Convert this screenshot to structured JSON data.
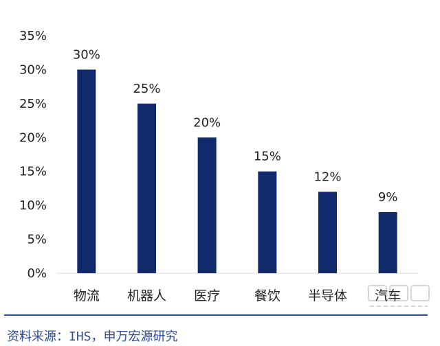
{
  "chart_data": {
    "type": "bar",
    "categories": [
      "物流",
      "机器人",
      "医疗",
      "餐饮",
      "半导体",
      "汽车"
    ],
    "values": [
      30,
      25,
      20,
      15,
      12,
      9
    ],
    "data_labels": [
      "30%",
      "25%",
      "20%",
      "15%",
      "12%",
      "9%"
    ],
    "y_ticks": [
      "0%",
      "5%",
      "10%",
      "15%",
      "20%",
      "25%",
      "30%",
      "35%"
    ],
    "ylim": [
      0,
      35
    ],
    "grid": false,
    "bar_color": "#102a6b"
  },
  "source": "资料来源：IHS，申万宏源研究",
  "accent_color": "#2e4a9a"
}
